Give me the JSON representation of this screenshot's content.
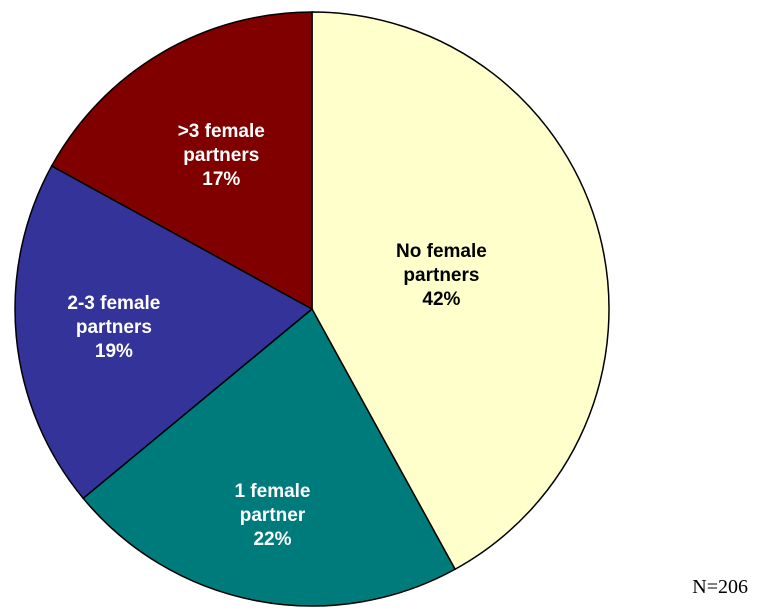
{
  "chart_data": {
    "type": "pie",
    "categories": [
      "No female partners",
      "1 female partner",
      "2-3 female partners",
      ">3 female partners"
    ],
    "values": [
      42,
      22,
      19,
      17
    ],
    "value_labels": [
      "42%",
      "22%",
      "19%",
      "17%"
    ],
    "colors": [
      "#ffffcc",
      "#007b7b",
      "#333399",
      "#800000"
    ],
    "note": "N=206"
  }
}
